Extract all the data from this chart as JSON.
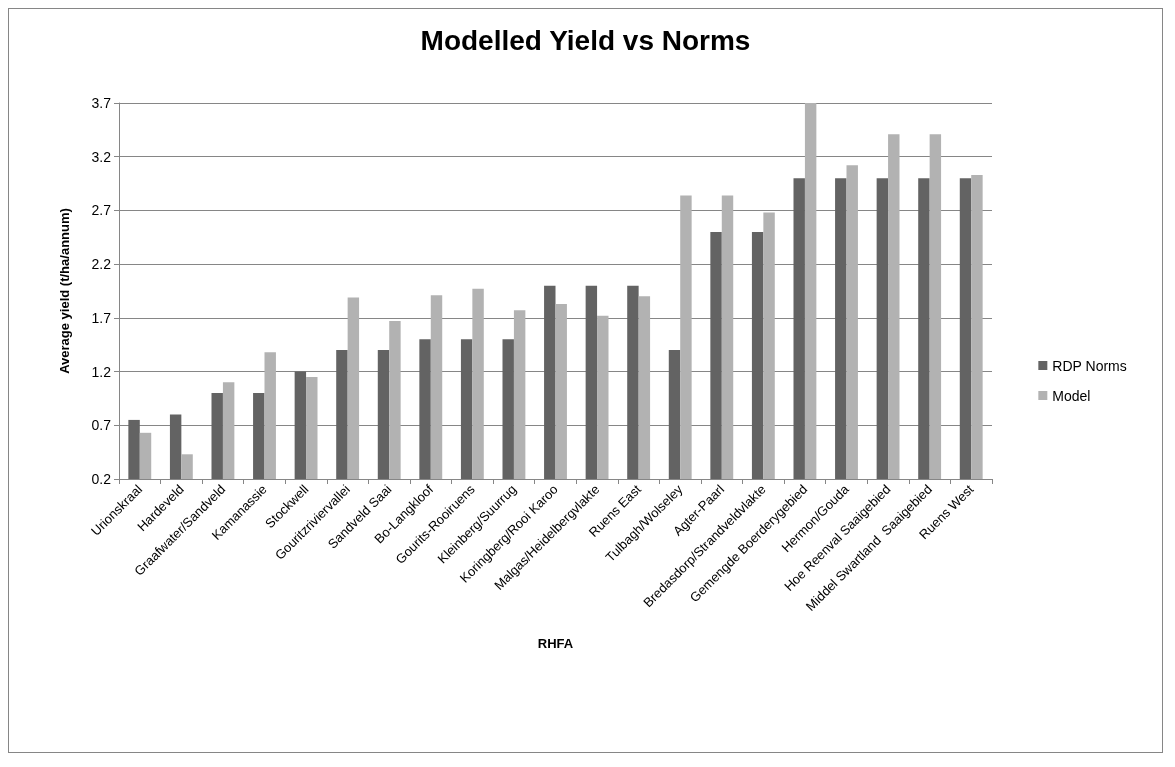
{
  "chart_data": {
    "type": "bar",
    "title": "Modelled Yield vs Norms",
    "xlabel": "RHFA",
    "ylabel": "Average yield (t/ha/annum)",
    "categories": [
      "Urionskraal",
      "Hardeveld",
      "Graafwater/Sandveld",
      "Kamanassie",
      "Stockwell",
      "Gouritzriviervallei",
      "Sandveld Saai",
      "Bo-Langkloof",
      "Gourits-Rooiruens",
      "Kleinberg/Suurrug",
      "Koringberg/Rooi Karoo",
      "Malgas/Heidelbergvlakte",
      "Ruens East",
      "Tulbagh/Wolseley",
      "Agter-Paarl",
      "Bredasdorp/Strandveldvlakte",
      "Gemengde Boerderygebied",
      "Hermon/Gouda",
      "Hoe Reenval Saaigebied",
      "Middel Swartland  Saaigebied",
      "Ruens West"
    ],
    "series": [
      {
        "name": "RDP Norms",
        "color": "#636363",
        "values": [
          0.75,
          0.8,
          1.0,
          1.0,
          1.2,
          1.4,
          1.4,
          1.5,
          1.5,
          1.5,
          2.0,
          2.0,
          2.0,
          1.4,
          2.5,
          2.5,
          3.0,
          3.0,
          3.0,
          3.0,
          3.0
        ]
      },
      {
        "name": "Model",
        "color": "#b2b2b2",
        "values": [
          0.63,
          0.43,
          1.1,
          1.38,
          1.15,
          1.89,
          1.67,
          1.91,
          1.97,
          1.77,
          1.83,
          1.72,
          1.9,
          2.84,
          2.84,
          2.68,
          3.7,
          3.12,
          3.41,
          3.41,
          3.03
        ]
      }
    ],
    "ylim": [
      0.2,
      3.7
    ],
    "yticks": [
      0.2,
      0.7,
      1.2,
      1.7,
      2.2,
      2.7,
      3.2,
      3.7
    ],
    "grid": "y",
    "legend": "right"
  }
}
